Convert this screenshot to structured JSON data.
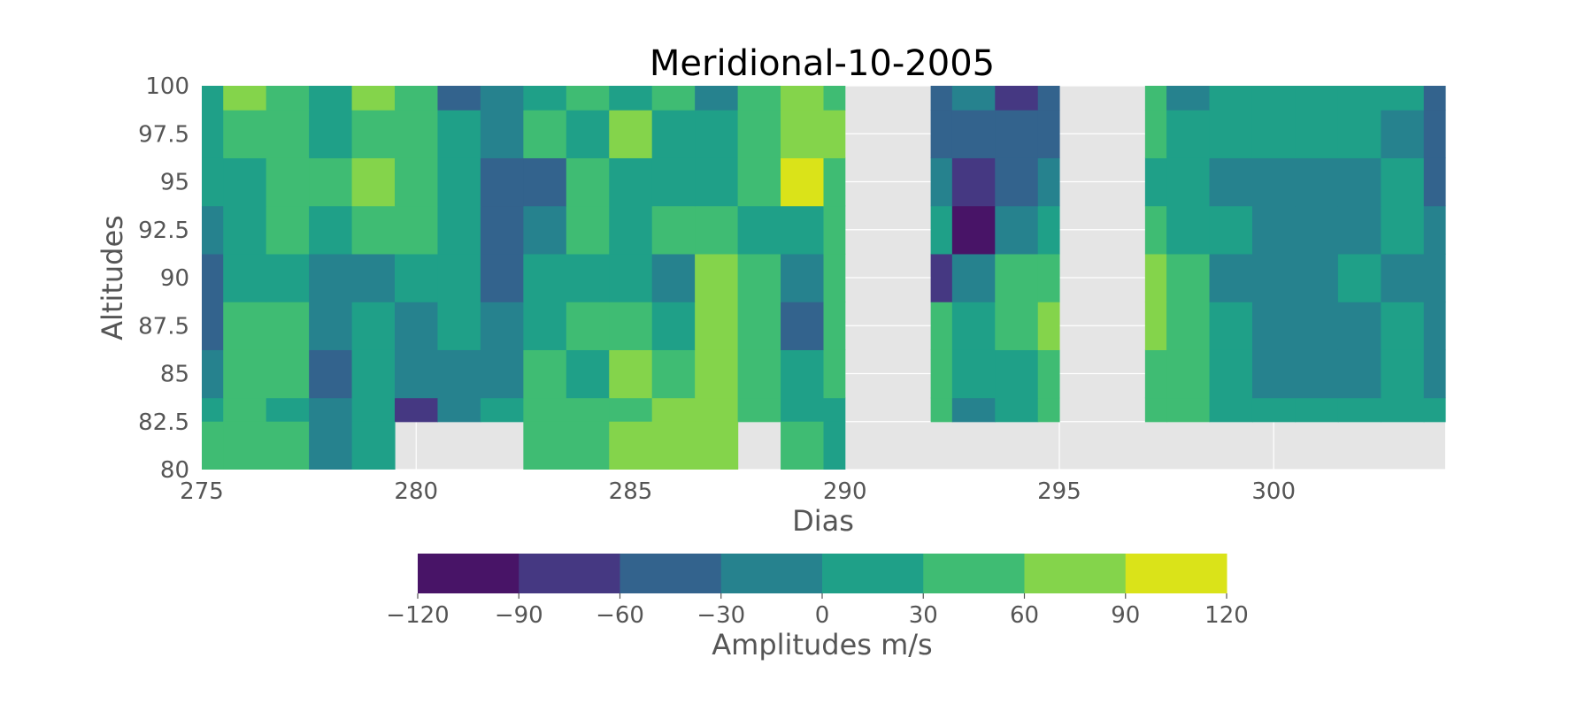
{
  "chart_data": {
    "type": "heatmap",
    "title": "Meridional-10-2005",
    "xlabel": "Dias",
    "ylabel": "Altitudes",
    "xlim": [
      275,
      304
    ],
    "ylim": [
      80,
      100
    ],
    "x_ticks": [
      "275",
      "280",
      "285",
      "290",
      "295",
      "300"
    ],
    "y_ticks": [
      "80",
      "82.5",
      "85",
      "87.5",
      "90",
      "92.5",
      "95",
      "97.5",
      "100"
    ],
    "grid": true,
    "data_blocks": [
      {
        "x_start": 275,
        "x_end": 290,
        "y_start": 80,
        "y_end": 100
      },
      {
        "x_start": 292,
        "x_end": 295,
        "y_start": 82.5,
        "y_end": 100
      },
      {
        "x_start": 297,
        "x_end": 304,
        "y_start": 82.5,
        "y_end": 100
      }
    ],
    "field": {
      "x": [
        275,
        276,
        277,
        278,
        279,
        280,
        281,
        282,
        283,
        284,
        285,
        286,
        287,
        288,
        289,
        290,
        291,
        292,
        293,
        294,
        295,
        296,
        297,
        298,
        299,
        300,
        301,
        302,
        303,
        304
      ],
      "y": [
        82.5,
        85,
        87.5,
        90,
        92.5,
        95,
        97.5,
        100
      ],
      "z": [
        [
          10,
          40,
          20,
          -20,
          10,
          -65,
          -30,
          10,
          40,
          30,
          50,
          80,
          60,
          40,
          20,
          5,
          null,
          40,
          -15,
          10,
          40,
          null,
          55,
          50,
          20,
          10,
          5,
          0,
          10,
          5
        ],
        [
          -15,
          40,
          50,
          -40,
          20,
          -25,
          -5,
          -15,
          45,
          20,
          65,
          40,
          70,
          50,
          10,
          35,
          null,
          30,
          0,
          20,
          45,
          null,
          50,
          40,
          10,
          -10,
          -5,
          -5,
          10,
          -5
        ],
        [
          -40,
          50,
          40,
          -5,
          10,
          -5,
          5,
          -20,
          25,
          40,
          45,
          10,
          85,
          40,
          -35,
          35,
          null,
          40,
          10,
          35,
          65,
          null,
          65,
          50,
          5,
          -5,
          -10,
          -5,
          5,
          -10
        ],
        [
          -35,
          10,
          10,
          -5,
          -5,
          10,
          10,
          -35,
          10,
          20,
          20,
          -30,
          75,
          45,
          -20,
          40,
          null,
          -70,
          -20,
          45,
          40,
          null,
          75,
          40,
          -10,
          -20,
          -5,
          0,
          -5,
          -15
        ],
        [
          -25,
          20,
          40,
          10,
          35,
          30,
          20,
          -50,
          -5,
          40,
          15,
          40,
          55,
          25,
          5,
          50,
          null,
          0,
          -100,
          -5,
          25,
          null,
          30,
          20,
          5,
          -20,
          -15,
          -5,
          10,
          -30
        ],
        [
          20,
          10,
          50,
          40,
          60,
          45,
          5,
          -40,
          -40,
          40,
          15,
          10,
          25,
          50,
          90,
          55,
          null,
          -15,
          -70,
          -50,
          -20,
          null,
          25,
          5,
          -5,
          -10,
          -25,
          -5,
          10,
          -40
        ],
        [
          25,
          55,
          35,
          25,
          55,
          40,
          5,
          -30,
          40,
          20,
          70,
          20,
          25,
          40,
          85,
          60,
          null,
          -40,
          -45,
          -60,
          -40,
          null,
          40,
          20,
          5,
          5,
          10,
          10,
          -5,
          -40
        ],
        [
          15,
          60,
          50,
          25,
          60,
          45,
          -40,
          -20,
          5,
          40,
          15,
          30,
          -5,
          40,
          70,
          50,
          null,
          -40,
          -30,
          -80,
          -40,
          null,
          50,
          -20,
          20,
          10,
          5,
          15,
          10,
          -50
        ]
      ],
      "bottom_row_80": [
        40,
        50,
        40,
        -5,
        20,
        null,
        null,
        null,
        45,
        55,
        65,
        75,
        80,
        null,
        40,
        10
      ]
    },
    "colorbar": {
      "label": "Amplitudes m/s",
      "levels": [
        -120,
        -90,
        -60,
        -30,
        0,
        30,
        60,
        90,
        120
      ],
      "tick_labels": [
        "−120",
        "−90",
        "−60",
        "−30",
        "0",
        "30",
        "60",
        "90",
        "120"
      ],
      "colors": [
        "#481467",
        "#453882",
        "#33638d",
        "#26828e",
        "#1fa088",
        "#3fbc73",
        "#84d44b",
        "#dae319"
      ],
      "orientation": "horizontal"
    },
    "background_color": "#e5e5e5",
    "grid_color": "#ffffff",
    "tick_color": "#555555"
  }
}
